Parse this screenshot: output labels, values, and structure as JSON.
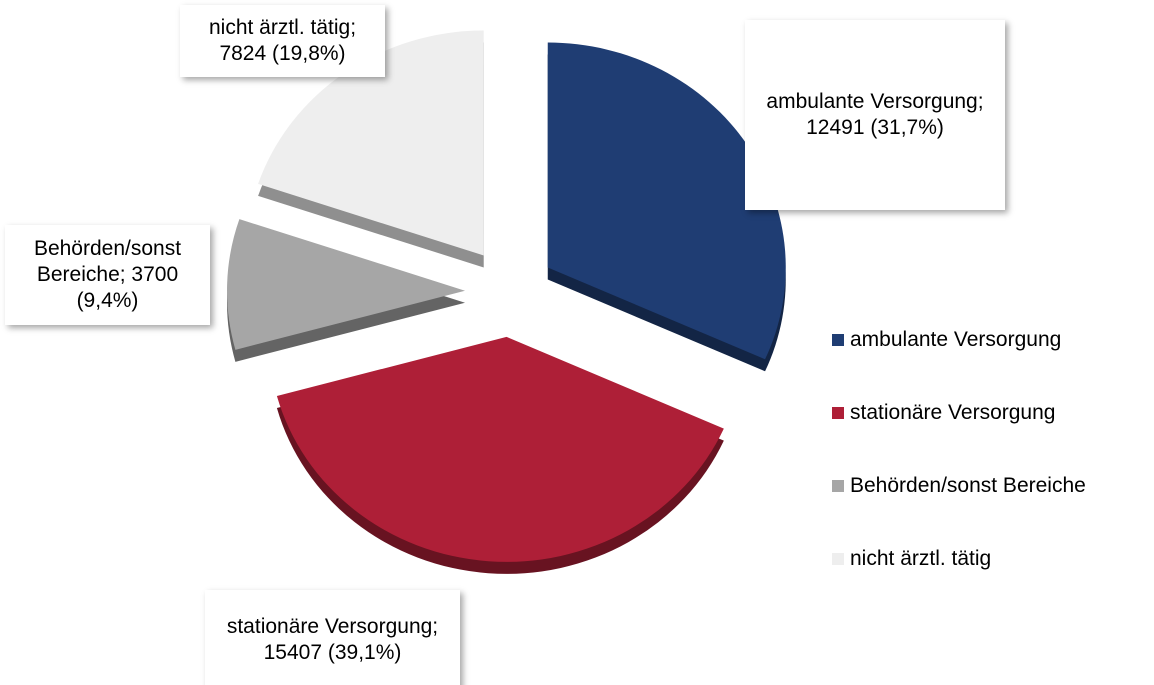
{
  "chart_data": {
    "type": "pie",
    "categories": [
      "ambulante Versorgung",
      "stationäre Versorgung",
      "Behörden/sonst Bereiche",
      "nicht ärztl. tätig"
    ],
    "values": [
      12491,
      15407,
      3700,
      7824
    ],
    "value_labels": [
      "ambulante Versorgung; 12491 (31,7%)",
      "stationäre Versorgung; 15407 (39,1%)",
      "Behörden/sonst Bereiche; 3700 (9,4%)",
      "nicht ärztl. tätig; 7824 (19,8%)"
    ],
    "colors": [
      "#1f3d73",
      "#ae1f37",
      "#a6a6a6",
      "#eeeeee"
    ],
    "legend": "right"
  }
}
